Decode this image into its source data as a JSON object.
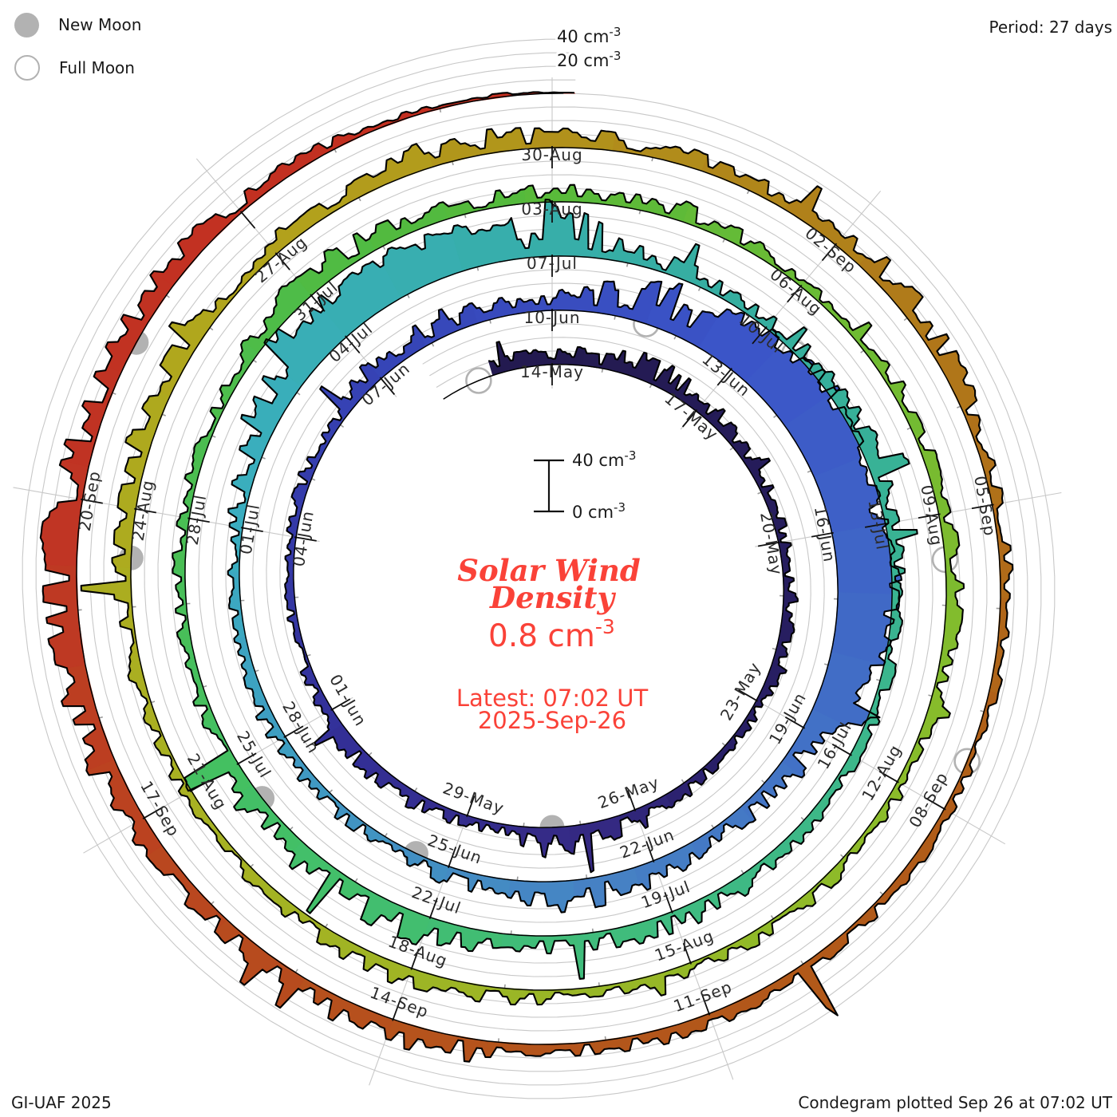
{
  "legend": {
    "new_moon": "New Moon",
    "full_moon": "Full Moon"
  },
  "header": {
    "period": "Period: 27 days"
  },
  "footer": {
    "left": "GI-UAF 2025",
    "right": "Condegram plotted Sep 26 at 07:02 UT"
  },
  "outer_scale": {
    "top": {
      "text": "40 cm",
      "exp": "-3"
    },
    "bottom": {
      "text": "20 cm",
      "exp": "-3"
    }
  },
  "center_scale": {
    "top": {
      "text": "40 cm",
      "exp": "-3"
    },
    "bottom": {
      "text": "0 cm",
      "exp": "-3"
    }
  },
  "center_text": {
    "title1": "Solar Wind",
    "title2": "Density",
    "value_text": "0.8 cm",
    "value_exp": "-3",
    "latest1": "Latest: 07:02 UT",
    "latest2": "2025-Sep-26"
  },
  "colors": {
    "annotation_red": "#fa4238",
    "moon_gray": "#b2b2b2",
    "grid_gray": "#c8c8c8",
    "tick_gray": "#9a9a9a",
    "label_dark": "#2b2b2b",
    "curve_black": "#000000"
  },
  "chart_data": {
    "type": "area",
    "subtype": "polar-spiral-condegram",
    "title": "Solar Wind Density",
    "units": "cm^-3",
    "period_days": 27,
    "start_label": "14-May",
    "latest_label": "2025-Sep-26 07:02 UT",
    "latest_value_cm3": 0.8,
    "value_gridlines_cm3": [
      10,
      20,
      30,
      40
    ],
    "date_tick_step_days": 3,
    "minor_tick_step_days": 1,
    "date_labels": [
      "14-May",
      "17-May",
      "20-May",
      "23-May",
      "26-May",
      "29-May",
      "01-Jun",
      "04-Jun",
      "07-Jun",
      "10-Jun",
      "13-Jun",
      "16-Jun",
      "19-Jun",
      "22-Jun",
      "25-Jun",
      "28-Jun",
      "01-Jul",
      "04-Jul",
      "07-Jul",
      "10-Jul",
      "13-Jul",
      "16-Jul",
      "19-Jul",
      "22-Jul",
      "25-Jul",
      "28-Jul",
      "31-Jul",
      "03-Aug",
      "06-Aug",
      "09-Aug",
      "12-Aug",
      "15-Aug",
      "18-Aug",
      "21-Aug",
      "24-Aug",
      "27-Aug",
      "30-Aug",
      "02-Sep",
      "05-Sep",
      "08-Sep",
      "11-Sep",
      "14-Sep",
      "17-Sep",
      "20-Sep"
    ],
    "daily_values_cm3": [
      8,
      10,
      12,
      9,
      7,
      6,
      5,
      6,
      8,
      5,
      4,
      6,
      10,
      22,
      8,
      5,
      8,
      10,
      6,
      5,
      4,
      5,
      6,
      8,
      13,
      12,
      9,
      8,
      16,
      24,
      38,
      42,
      40,
      36,
      42,
      34,
      14,
      9,
      8,
      10,
      14,
      16,
      8,
      5,
      7,
      8,
      6,
      5,
      6,
      12,
      22,
      30,
      32,
      28,
      24,
      10,
      7,
      6,
      8,
      10,
      7,
      5,
      6,
      5,
      6,
      8,
      10,
      8,
      7,
      14,
      18,
      12,
      8,
      6,
      5,
      6,
      5,
      8,
      14,
      10,
      7,
      8,
      10,
      8,
      6,
      5,
      6,
      7,
      8,
      6,
      5,
      6,
      8,
      6,
      5,
      7,
      9,
      8,
      6,
      5,
      6,
      8,
      10,
      12,
      9,
      8,
      10,
      12,
      10,
      8,
      8,
      10,
      13,
      9,
      6,
      5,
      4,
      5,
      6,
      5,
      7,
      6,
      7,
      12,
      10,
      8,
      10,
      16,
      20,
      15,
      10,
      12,
      8,
      5,
      3
    ],
    "days_plotted": 135.2,
    "new_moon_day_offsets": [
      13.5,
      42.5,
      71.5,
      101.5,
      130.5
    ],
    "full_moon_day_offsets": [
      -1.5,
      28.5,
      57.5,
      87.5,
      116.5
    ],
    "colormap_anchors": [
      [
        0,
        "#231a50"
      ],
      [
        10,
        "#281f66"
      ],
      [
        13,
        "#352a84"
      ],
      [
        18,
        "#333099"
      ],
      [
        24,
        "#3644b6"
      ],
      [
        30,
        "#3b55c8"
      ],
      [
        40,
        "#4682c4"
      ],
      [
        48,
        "#3aaec0"
      ],
      [
        57,
        "#35ae9e"
      ],
      [
        66,
        "#3fbb80"
      ],
      [
        72,
        "#44c062"
      ],
      [
        80,
        "#53ba3c"
      ],
      [
        90,
        "#8bbc2a"
      ],
      [
        99,
        "#a8b122"
      ],
      [
        105,
        "#b2a41c"
      ],
      [
        111,
        "#b0801a"
      ],
      [
        117,
        "#b05c18"
      ],
      [
        123,
        "#b5521c"
      ],
      [
        129,
        "#c03424"
      ],
      [
        135.5,
        "#c42d1e"
      ]
    ]
  }
}
